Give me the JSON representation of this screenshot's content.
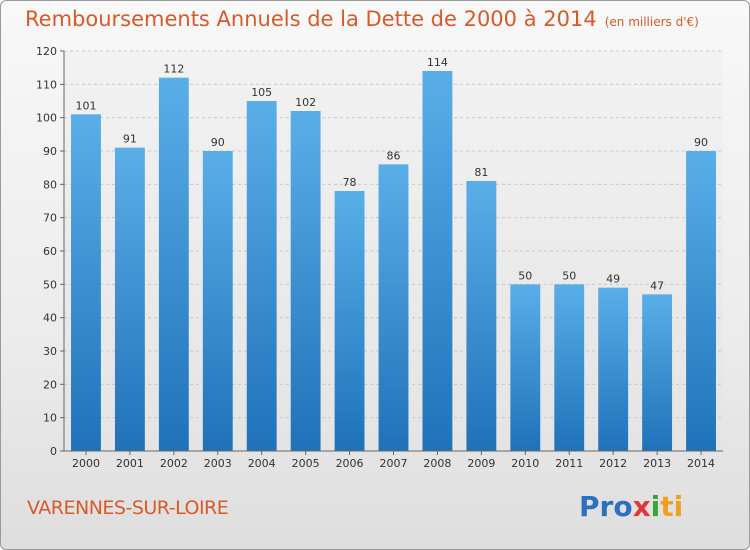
{
  "title": "Remboursements Annuels de la Dette de 2000 à 2014",
  "subtitle": "(en milliers d'€)",
  "town": "VARENNES-SUR-LOIRE",
  "logo": {
    "text": "Proxiti",
    "p1": "Pro",
    "p2": "x",
    "p3": "i",
    "p4": "ti"
  },
  "colors": {
    "title": "#d85a2a",
    "bar_top": "#5aaee8",
    "bar_bottom": "#1f72b8"
  },
  "chart_data": {
    "type": "bar",
    "categories": [
      "2000",
      "2001",
      "2002",
      "2003",
      "2004",
      "2005",
      "2006",
      "2007",
      "2008",
      "2009",
      "2010",
      "2011",
      "2012",
      "2013",
      "2014"
    ],
    "values": [
      101,
      91,
      112,
      90,
      105,
      102,
      78,
      86,
      114,
      81,
      50,
      50,
      49,
      47,
      90
    ],
    "ylim": [
      0,
      120
    ],
    "yticks": [
      0,
      10,
      20,
      30,
      40,
      50,
      60,
      70,
      80,
      90,
      100,
      110,
      120
    ],
    "grid": true,
    "data_labels": true
  }
}
